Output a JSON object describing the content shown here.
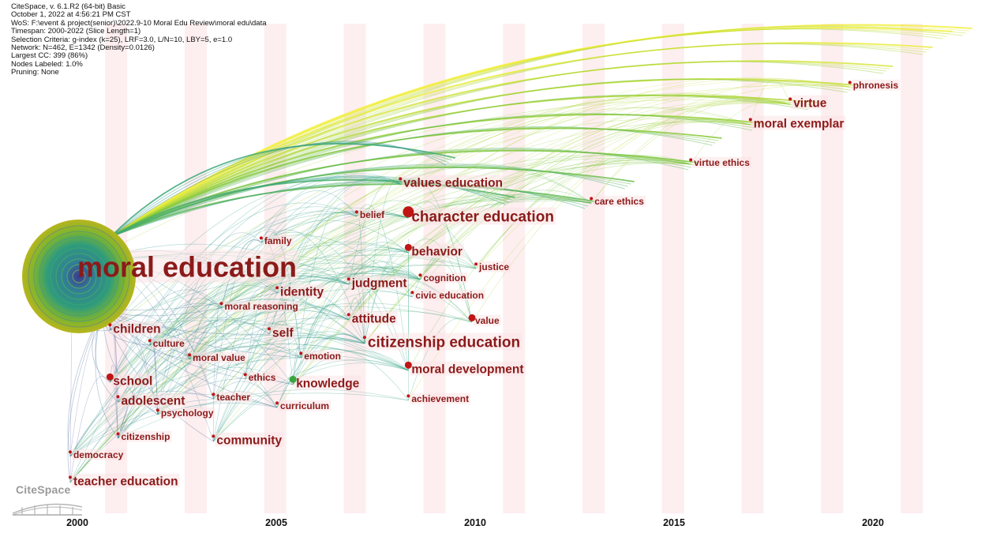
{
  "meta": {
    "lines": [
      "CiteSpace, v. 6.1.R2 (64-bit) Basic",
      "October 1, 2022 at 4:56:21 PM CST",
      "WoS: F:\\event & project(senior)\\2022.9-10 Moral Edu Review\\moral edu\\data",
      "Timespan: 2000-2022 (Slice Length=1)",
      "Selection Criteria: g-index (k=25), LRF=3.0, L/N=10, LBY=5, e=1.0",
      "Network: N=462, E=1342 (Density=0.0126)",
      "Largest CC: 399 (86%)",
      "Nodes Labeled: 1.0%",
      "Pruning: None"
    ]
  },
  "logo": {
    "text": "CiteSpace"
  },
  "timeline": {
    "start": 2000,
    "end": 2022,
    "tick_labels": [
      "2000",
      "2005",
      "2010",
      "2015",
      "2020"
    ]
  },
  "colors": {
    "label": "#8b1a1a",
    "node": "#c01515",
    "stripe": "#fdeef0",
    "year_old": "#6a5fa8",
    "year_mid": "#2a9e8c",
    "year_new": "#f2ef3a"
  },
  "keywords": [
    {
      "label": "moral education",
      "year": 2000,
      "size": "xl",
      "node": "big"
    },
    {
      "label": "character education",
      "year": 2008.4,
      "size": "l",
      "node": "red"
    },
    {
      "label": "values education",
      "year": 2008.2,
      "size": "m"
    },
    {
      "label": "citizenship education",
      "year": 2007.3,
      "size": "l"
    },
    {
      "label": "moral development",
      "year": 2008.4,
      "size": "m",
      "node": "red"
    },
    {
      "label": "behavior",
      "year": 2008.4,
      "size": "m",
      "node": "red"
    },
    {
      "label": "judgment",
      "year": 2006.9,
      "size": "m"
    },
    {
      "label": "identity",
      "year": 2005.1,
      "size": "m"
    },
    {
      "label": "attitude",
      "year": 2006.9,
      "size": "m"
    },
    {
      "label": "children",
      "year": 2000.9,
      "size": "m"
    },
    {
      "label": "school",
      "year": 2000.9,
      "size": "m",
      "node": "red"
    },
    {
      "label": "adolescent",
      "year": 2001.1,
      "size": "m"
    },
    {
      "label": "community",
      "year": 2003.5,
      "size": "m"
    },
    {
      "label": "teacher education",
      "year": 1999.9,
      "size": "m"
    },
    {
      "label": "democracy",
      "year": 1999.9,
      "size": "s"
    },
    {
      "label": "citizenship",
      "year": 2001.1,
      "size": "s"
    },
    {
      "label": "psychology",
      "year": 2002.1,
      "size": "s"
    },
    {
      "label": "culture",
      "year": 2001.9,
      "size": "s"
    },
    {
      "label": "moral value",
      "year": 2002.9,
      "size": "s"
    },
    {
      "label": "ethics",
      "year": 2004.3,
      "size": "s"
    },
    {
      "label": "teacher",
      "year": 2003.5,
      "size": "s"
    },
    {
      "label": "emotion",
      "year": 2005.7,
      "size": "s"
    },
    {
      "label": "knowledge",
      "year": 2005.5,
      "size": "m",
      "node": "green"
    },
    {
      "label": "curriculum",
      "year": 2005.1,
      "size": "s"
    },
    {
      "label": "self",
      "year": 2004.9,
      "size": "m"
    },
    {
      "label": "moral reasoning",
      "year": 2003.7,
      "size": "s"
    },
    {
      "label": "family",
      "year": 2004.7,
      "size": "s"
    },
    {
      "label": "belief",
      "year": 2007.1,
      "size": "s"
    },
    {
      "label": "cognition",
      "year": 2008.7,
      "size": "s"
    },
    {
      "label": "justice",
      "year": 2010.1,
      "size": "s"
    },
    {
      "label": "civic education",
      "year": 2008.5,
      "size": "s"
    },
    {
      "label": "value",
      "year": 2010.0,
      "size": "s",
      "node": "red"
    },
    {
      "label": "achievement",
      "year": 2008.4,
      "size": "s"
    },
    {
      "label": "care ethics",
      "year": 2013.0,
      "size": "s"
    },
    {
      "label": "virtue ethics",
      "year": 2015.5,
      "size": "s"
    },
    {
      "label": "moral exemplar",
      "year": 2017.0,
      "size": "m"
    },
    {
      "label": "virtue",
      "year": 2018.0,
      "size": "m"
    },
    {
      "label": "phronesis",
      "year": 2019.5,
      "size": "s"
    }
  ]
}
